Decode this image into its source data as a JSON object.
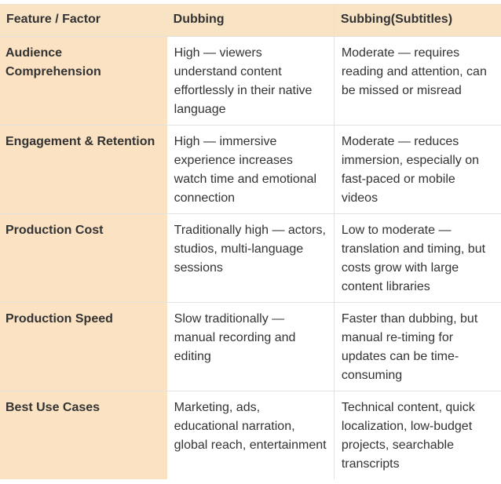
{
  "table": {
    "header": [
      "Feature / Factor",
      "Dubbing",
      "Subbing(Subtitles)"
    ],
    "rows": [
      [
        "Audience Comprehension",
        "High — viewers understand content effortlessly in their native language",
        "Moderate — requires reading and attention, can be missed or misread"
      ],
      [
        "Engagement & Retention",
        "High — immersive experience increases watch time and emotional connection",
        "Moderate — reduces immersion, especially on fast-paced or mobile videos"
      ],
      [
        "Production Cost",
        "Traditionally high — actors, studios, multi-language sessions",
        "Low to moderate — translation and timing, but costs grow with large content libraries"
      ],
      [
        "Production Speed",
        "Slow traditionally — manual recording and editing",
        "Faster than dubbing, but manual re-timing for updates can be time-consuming"
      ],
      [
        "Best Use Cases",
        "Marketing, ads, educational narration, global reach, entertainment",
        "Technical content, quick localization, low-budget projects, searchable transcripts"
      ]
    ]
  }
}
